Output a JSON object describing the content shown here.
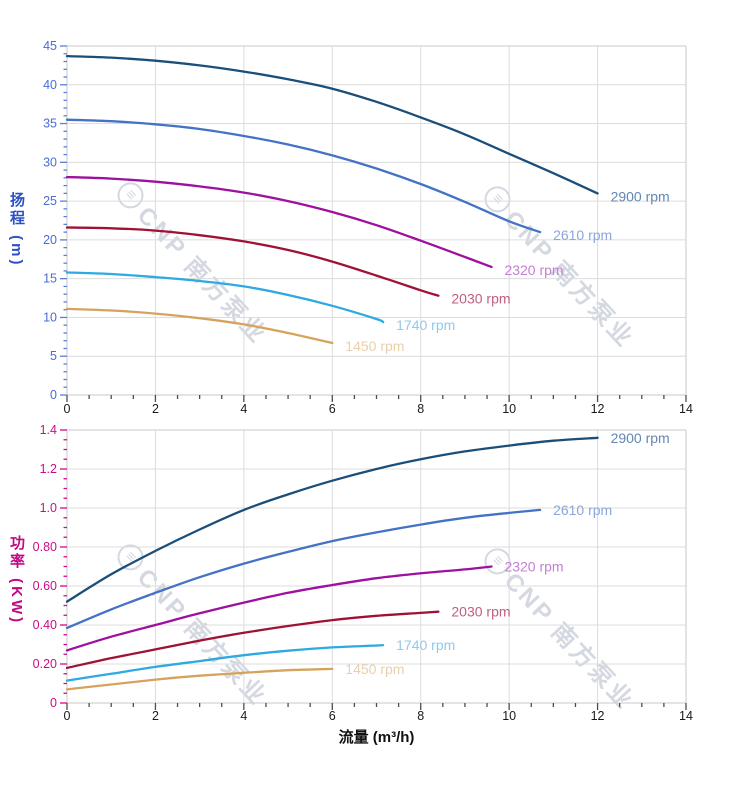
{
  "watermark": {
    "logo": "≡",
    "text": "CNP 南方泵业",
    "color": "#c6cbd7"
  },
  "x_axis": {
    "title": "流量 (m³/h)",
    "min": 0,
    "max": 14,
    "major_step": 2,
    "minor_step": 0.5,
    "tick_labels": [
      "0",
      "2",
      "4",
      "6",
      "8",
      "10",
      "12",
      "14"
    ],
    "tick_color": "#4d4d4d",
    "label_color": "#1a1a1a"
  },
  "chart_data": [
    {
      "type": "line",
      "title": "",
      "xlabel": "流量 (m³/h)",
      "ylabel": "扬程 (m)",
      "xlim": [
        0,
        14
      ],
      "ylim": [
        0,
        45
      ],
      "y_major_step": 5,
      "y_minor_step": 1,
      "y_tick_labels": [
        "0",
        "5",
        "10",
        "15",
        "20",
        "25",
        "30",
        "35",
        "40",
        "45"
      ],
      "grid": true,
      "legend_position": "inline-end-of-curve",
      "tick_color": "#5b7fd4",
      "tick_label_color": "#4a6bd8",
      "title_color": "#2d4fc8",
      "series": [
        {
          "name": "2900 rpm",
          "color": "#1b4e79",
          "label_color": "#6287b5",
          "x": [
            0,
            1,
            2,
            3,
            4,
            5,
            6,
            7,
            8,
            9,
            10,
            11,
            12
          ],
          "y": [
            43.7,
            43.5,
            43.1,
            42.5,
            41.7,
            40.7,
            39.5,
            37.8,
            35.8,
            33.6,
            31.1,
            28.6,
            26.0
          ]
        },
        {
          "name": "2610 rpm",
          "color": "#4472c4",
          "label_color": "#8aa7dc",
          "x": [
            0,
            1,
            2,
            3,
            4,
            5,
            6,
            7,
            8,
            9,
            10,
            10.7
          ],
          "y": [
            35.5,
            35.3,
            34.9,
            34.3,
            33.4,
            32.3,
            30.9,
            29.2,
            27.2,
            24.9,
            22.4,
            21.0
          ]
        },
        {
          "name": "2320 rpm",
          "color": "#9e109e",
          "label_color": "#c47fd2",
          "x": [
            0,
            1,
            2,
            3,
            4,
            5,
            6,
            7,
            8,
            9,
            9.6
          ],
          "y": [
            28.1,
            27.9,
            27.5,
            26.9,
            26.1,
            25.0,
            23.6,
            21.9,
            19.9,
            17.8,
            16.5
          ]
        },
        {
          "name": "2030 rpm",
          "color": "#a01235",
          "label_color": "#bf5e7d",
          "x": [
            0,
            1,
            2,
            3,
            4,
            5,
            6,
            7,
            8,
            8.4
          ],
          "y": [
            21.6,
            21.5,
            21.2,
            20.6,
            19.8,
            18.7,
            17.2,
            15.4,
            13.5,
            12.8
          ]
        },
        {
          "name": "1740 rpm",
          "color": "#2ea9e1",
          "label_color": "#90c9ef",
          "x": [
            0,
            1,
            2,
            3,
            4,
            5,
            6,
            7,
            7.15
          ],
          "y": [
            15.8,
            15.6,
            15.2,
            14.7,
            14.0,
            12.9,
            11.5,
            9.8,
            9.4
          ]
        },
        {
          "name": "1450 rpm",
          "color": "#d6a35e",
          "label_color": "#e9d0ab",
          "x": [
            0,
            1,
            2,
            3,
            4,
            5,
            6
          ],
          "y": [
            11.1,
            10.9,
            10.5,
            9.9,
            9.1,
            8.0,
            6.7
          ]
        }
      ]
    },
    {
      "type": "line",
      "title": "",
      "xlabel": "流量 (m³/h)",
      "ylabel": "功率 (KW)",
      "xlim": [
        0,
        14
      ],
      "ylim": [
        0,
        1.4
      ],
      "y_major_step": 0.2,
      "y_minor_step": 0.05,
      "y_tick_labels": [
        "0",
        "0.20",
        "0.40",
        "0.60",
        "0.80",
        "1.0",
        "1.2",
        "1.4"
      ],
      "grid": true,
      "legend_position": "inline-end-of-curve",
      "tick_color": "#cc0d86",
      "tick_label_color": "#cc0d86",
      "title_color": "#c00884",
      "series": [
        {
          "name": "2900 rpm",
          "color": "#1b4e79",
          "label_color": "#6287b5",
          "x": [
            0,
            1,
            2,
            3,
            4,
            5,
            6,
            7,
            8,
            9,
            10,
            11,
            12
          ],
          "y": [
            0.52,
            0.66,
            0.78,
            0.89,
            0.99,
            1.07,
            1.14,
            1.2,
            1.25,
            1.29,
            1.32,
            1.345,
            1.36
          ]
        },
        {
          "name": "2610 rpm",
          "color": "#4472c4",
          "label_color": "#8aa7dc",
          "x": [
            0,
            1,
            2,
            3,
            4,
            5,
            6,
            7,
            8,
            9,
            10,
            10.7
          ],
          "y": [
            0.385,
            0.48,
            0.565,
            0.645,
            0.715,
            0.775,
            0.83,
            0.875,
            0.915,
            0.95,
            0.975,
            0.99
          ]
        },
        {
          "name": "2320 rpm",
          "color": "#9e109e",
          "label_color": "#c47fd2",
          "x": [
            0,
            1,
            2,
            3,
            4,
            5,
            6,
            7,
            8,
            9,
            9.6
          ],
          "y": [
            0.27,
            0.34,
            0.4,
            0.46,
            0.515,
            0.565,
            0.605,
            0.64,
            0.665,
            0.685,
            0.7
          ]
        },
        {
          "name": "2030 rpm",
          "color": "#a01235",
          "label_color": "#bf5e7d",
          "x": [
            0,
            1,
            2,
            3,
            4,
            5,
            6,
            7,
            8,
            8.4
          ],
          "y": [
            0.18,
            0.23,
            0.275,
            0.32,
            0.36,
            0.395,
            0.425,
            0.447,
            0.462,
            0.468
          ]
        },
        {
          "name": "1740 rpm",
          "color": "#2ea9e1",
          "label_color": "#90c9ef",
          "x": [
            0,
            1,
            2,
            3,
            4,
            5,
            6,
            7,
            7.15
          ],
          "y": [
            0.115,
            0.15,
            0.185,
            0.215,
            0.245,
            0.268,
            0.285,
            0.295,
            0.297
          ]
        },
        {
          "name": "1450 rpm",
          "color": "#d6a35e",
          "label_color": "#e9d0ab",
          "x": [
            0,
            1,
            2,
            3,
            4,
            5,
            6
          ],
          "y": [
            0.07,
            0.095,
            0.12,
            0.14,
            0.155,
            0.168,
            0.175
          ]
        }
      ]
    }
  ]
}
